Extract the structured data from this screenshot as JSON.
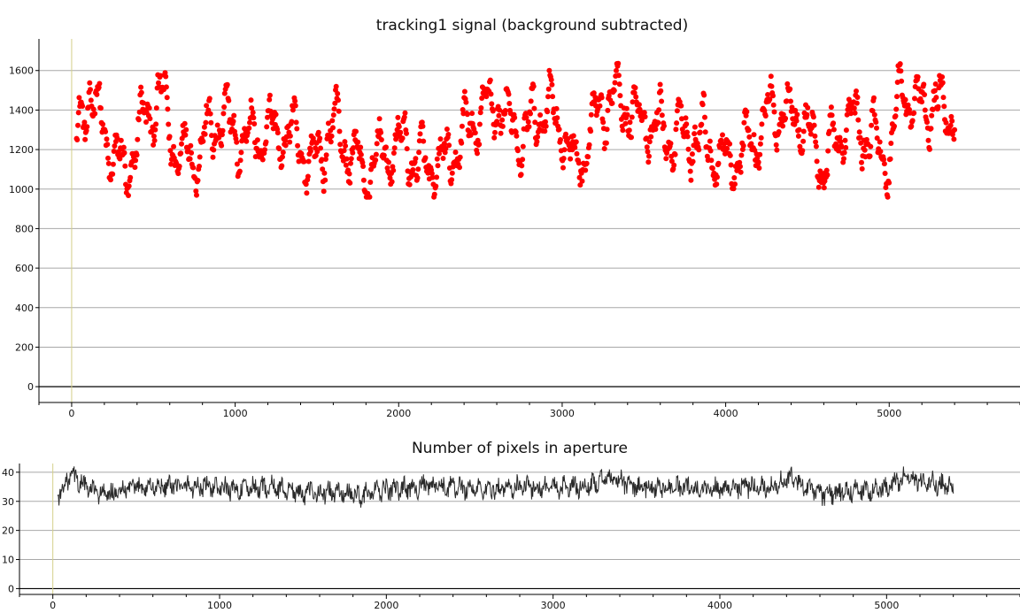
{
  "chart_data": [
    {
      "id": "signal",
      "type": "scatter",
      "title": "tracking1 signal (background subtracted)",
      "xlabel": "",
      "ylabel": "",
      "xlim": [
        -200,
        5800
      ],
      "ylim": [
        -80,
        1760
      ],
      "xticks": [
        0,
        1000,
        2000,
        3000,
        4000,
        5000
      ],
      "yticks": [
        0,
        200,
        400,
        600,
        800,
        1000,
        1200,
        1400,
        1600
      ],
      "grid": true,
      "marker_color": "#ff0000",
      "approx_data": {
        "x_range": [
          30,
          5400
        ],
        "y_mean": 1290,
        "y_min": 960,
        "y_max": 1680,
        "n_points": 1340,
        "anchors": [
          [
            30,
            1250
          ],
          [
            110,
            1500
          ],
          [
            220,
            1230
          ],
          [
            330,
            1050
          ],
          [
            430,
            1330
          ],
          [
            540,
            1470
          ],
          [
            650,
            1180
          ],
          [
            780,
            1200
          ],
          [
            900,
            1350
          ],
          [
            1050,
            1250
          ],
          [
            1200,
            1300
          ],
          [
            1350,
            1260
          ],
          [
            1480,
            1120
          ],
          [
            1600,
            1330
          ],
          [
            1800,
            1060
          ],
          [
            1900,
            1180
          ],
          [
            2050,
            1230
          ],
          [
            2150,
            1090
          ],
          [
            2300,
            1130
          ],
          [
            2450,
            1330
          ],
          [
            2600,
            1450
          ],
          [
            2750,
            1230
          ],
          [
            2900,
            1440
          ],
          [
            3000,
            1310
          ],
          [
            3080,
            1100
          ],
          [
            3200,
            1310
          ],
          [
            3330,
            1500
          ],
          [
            3500,
            1330
          ],
          [
            3700,
            1260
          ],
          [
            3850,
            1280
          ],
          [
            4000,
            1140
          ],
          [
            4150,
            1230
          ],
          [
            4300,
            1420
          ],
          [
            4450,
            1380
          ],
          [
            4600,
            1120
          ],
          [
            4750,
            1350
          ],
          [
            4900,
            1250
          ],
          [
            5000,
            1140
          ],
          [
            5080,
            1560
          ],
          [
            5150,
            1380
          ],
          [
            5250,
            1440
          ],
          [
            5400,
            1400
          ]
        ]
      }
    },
    {
      "id": "pixels",
      "type": "line",
      "title": "Number of pixels in aperture",
      "xlabel": "",
      "ylabel": "",
      "xlim": [
        -200,
        5800
      ],
      "ylim": [
        -2,
        43
      ],
      "xticks": [
        0,
        1000,
        2000,
        3000,
        4000,
        5000
      ],
      "yticks": [
        0,
        10,
        20,
        30,
        40
      ],
      "grid": true,
      "line_color": "#2a2a2a",
      "approx_data": {
        "x_range": [
          30,
          5400
        ],
        "y_mean": 34.5,
        "y_min": 27,
        "y_max": 42,
        "anchors": [
          [
            30,
            32
          ],
          [
            110,
            39
          ],
          [
            220,
            34
          ],
          [
            330,
            32
          ],
          [
            500,
            35
          ],
          [
            700,
            35
          ],
          [
            900,
            35
          ],
          [
            1100,
            34
          ],
          [
            1300,
            35
          ],
          [
            1500,
            33
          ],
          [
            1700,
            33
          ],
          [
            1850,
            32
          ],
          [
            2000,
            34
          ],
          [
            2200,
            35
          ],
          [
            2400,
            35
          ],
          [
            2600,
            34
          ],
          [
            2800,
            35
          ],
          [
            3000,
            35
          ],
          [
            3200,
            35
          ],
          [
            3330,
            38
          ],
          [
            3500,
            35
          ],
          [
            3700,
            35
          ],
          [
            3900,
            34
          ],
          [
            4100,
            35
          ],
          [
            4300,
            35
          ],
          [
            4430,
            38
          ],
          [
            4600,
            32
          ],
          [
            4800,
            34
          ],
          [
            5000,
            34
          ],
          [
            5080,
            38
          ],
          [
            5200,
            37
          ],
          [
            5400,
            35
          ]
        ]
      }
    }
  ]
}
